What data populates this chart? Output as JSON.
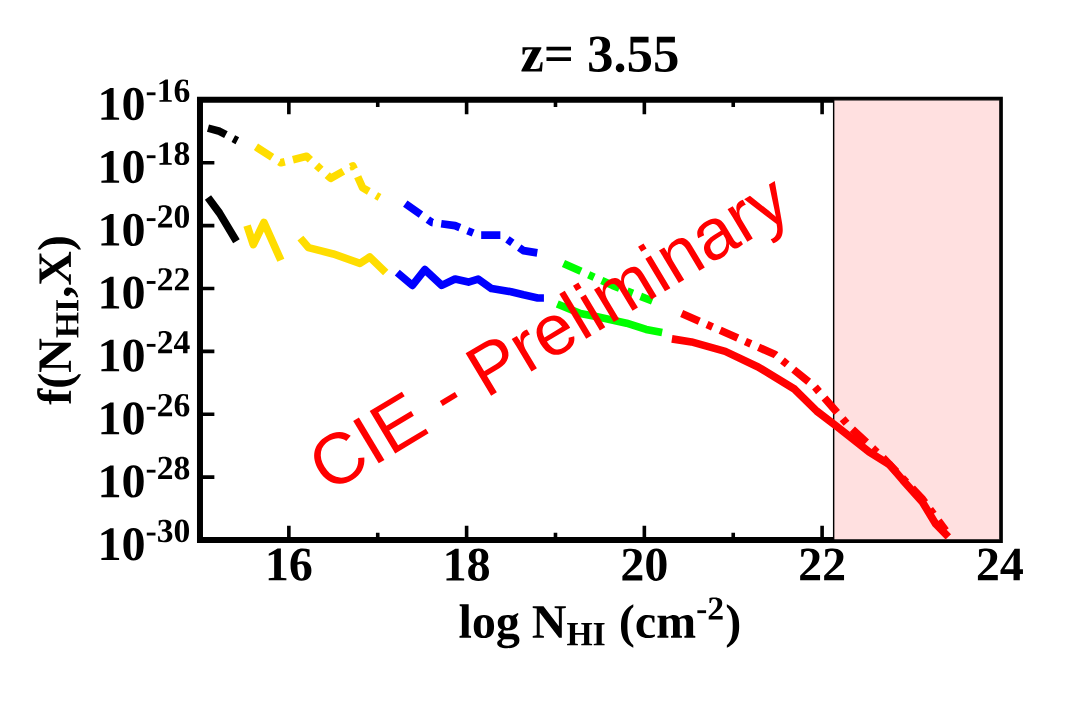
{
  "chart_data": {
    "type": "line",
    "title": "z= 3.55",
    "xlabel": "log N$_{HI}$ (cm$^{-2}$)",
    "ylabel": "f(N$_{HI}$,X)",
    "log": "y",
    "grid": false,
    "marker": "none",
    "xlim": [
      15,
      24
    ],
    "ylim": [
      1e-30,
      1e-16
    ],
    "xticks": [
      16,
      18,
      20,
      22,
      24
    ],
    "yticks": [
      {
        "value": 1e-16,
        "label": "10$^{-16}$"
      },
      {
        "value": 1e-18,
        "label": "10$^{-18}$"
      },
      {
        "value": 1e-20,
        "label": "10$^{-20}$"
      },
      {
        "value": 1e-22,
        "label": "10$^{-22}$"
      },
      {
        "value": 1e-24,
        "label": "10$^{-24}$"
      },
      {
        "value": 1e-26,
        "label": "10$^{-26}$"
      },
      {
        "value": 1e-28,
        "label": "10$^{-28}$"
      },
      {
        "value": 1e-30,
        "label": "10$^{-30}$"
      }
    ],
    "bands": [
      {
        "axis": "x",
        "from": 22.13,
        "to": 24,
        "color": "#ffe0e0"
      }
    ],
    "annotations": [
      "CIE - Preliminary"
    ],
    "series": [
      {
        "color": "#000000",
        "line_style": "solid",
        "x": [
          15.09,
          15.22,
          15.41
        ],
        "values": [
          7.9e-20,
          2.5e-20,
          3.2e-21
        ]
      },
      {
        "color": "#ffdd00",
        "line_style": "solid",
        "x": [
          15.53,
          15.6,
          15.72,
          15.91,
          16.02,
          16.13,
          16.22,
          16.5,
          16.8,
          16.91,
          17.09
        ],
        "values": [
          1e-20,
          2.5e-21,
          1.26e-20,
          7.9e-22,
          null,
          4e-21,
          2e-21,
          1.26e-21,
          6.3e-22,
          1e-21,
          3.2e-22
        ]
      },
      {
        "color": "#0000ff",
        "line_style": "solid",
        "x": [
          17.22,
          17.39,
          17.53,
          17.72,
          17.87,
          18.02,
          18.13,
          18.28,
          18.5,
          18.64,
          18.8,
          18.87
        ],
        "values": [
          3.2e-22,
          1.26e-22,
          4e-22,
          1.26e-22,
          2e-22,
          1.6e-22,
          2e-22,
          1e-22,
          7.9e-23,
          6.3e-23,
          5e-23,
          5e-23
        ]
      },
      {
        "color": "#00ff00",
        "line_style": "solid",
        "x": [
          19.02,
          19.28,
          19.47,
          19.8,
          20.02,
          20.2
        ],
        "values": [
          3.2e-23,
          1.6e-23,
          1.26e-23,
          7.9e-24,
          5e-24,
          4e-24
        ]
      },
      {
        "color": "#ff0000",
        "line_style": "solid",
        "x": [
          20.31,
          20.53,
          20.91,
          21.28,
          21.69,
          21.94,
          22.17,
          22.53,
          22.76,
          22.91,
          23.13,
          23.28,
          23.42
        ],
        "values": [
          2.5e-24,
          2e-24,
          1e-24,
          3.2e-25,
          6.3e-26,
          1.26e-26,
          4e-27,
          6.3e-28,
          2.5e-28,
          7.9e-29,
          1.6e-29,
          3.2e-30,
          1.26e-30
        ]
      },
      {
        "color": "#000000",
        "line_style": "dashed",
        "x": [
          15.09,
          15.22,
          15.42
        ],
        "values": [
          1.26e-17,
          1e-17,
          5e-18
        ]
      },
      {
        "color": "#ffdd00",
        "line_style": "dashed",
        "x": [
          15.63,
          15.91,
          16.2,
          16.47,
          16.72,
          16.83,
          17.02
        ],
        "values": [
          3.2e-18,
          1e-18,
          1.6e-18,
          3.2e-19,
          7.9e-19,
          1.6e-19,
          7.9e-20
        ]
      },
      {
        "color": "#0000ff",
        "line_style": "dashed",
        "x": [
          17.31,
          17.61,
          17.87,
          18.13,
          18.39,
          18.64,
          18.87
        ],
        "values": [
          5e-20,
          1.26e-20,
          1e-20,
          5e-21,
          5e-21,
          1.6e-21,
          1.26e-21
        ]
      },
      {
        "color": "#00ff00",
        "line_style": "dashed",
        "x": [
          19.09,
          19.64,
          20.09
        ],
        "values": [
          6.3e-22,
          1.26e-22,
          4e-23
        ]
      },
      {
        "color": "#ff0000",
        "line_style": "dashed",
        "x": [
          20.42,
          20.91,
          21.47,
          21.91,
          22.31,
          22.69,
          23.13,
          23.39
        ],
        "values": [
          1.6e-23,
          4e-24,
          7.9e-25,
          7.9e-26,
          4e-27,
          4e-28,
          2e-29,
          2e-30
        ]
      }
    ]
  }
}
